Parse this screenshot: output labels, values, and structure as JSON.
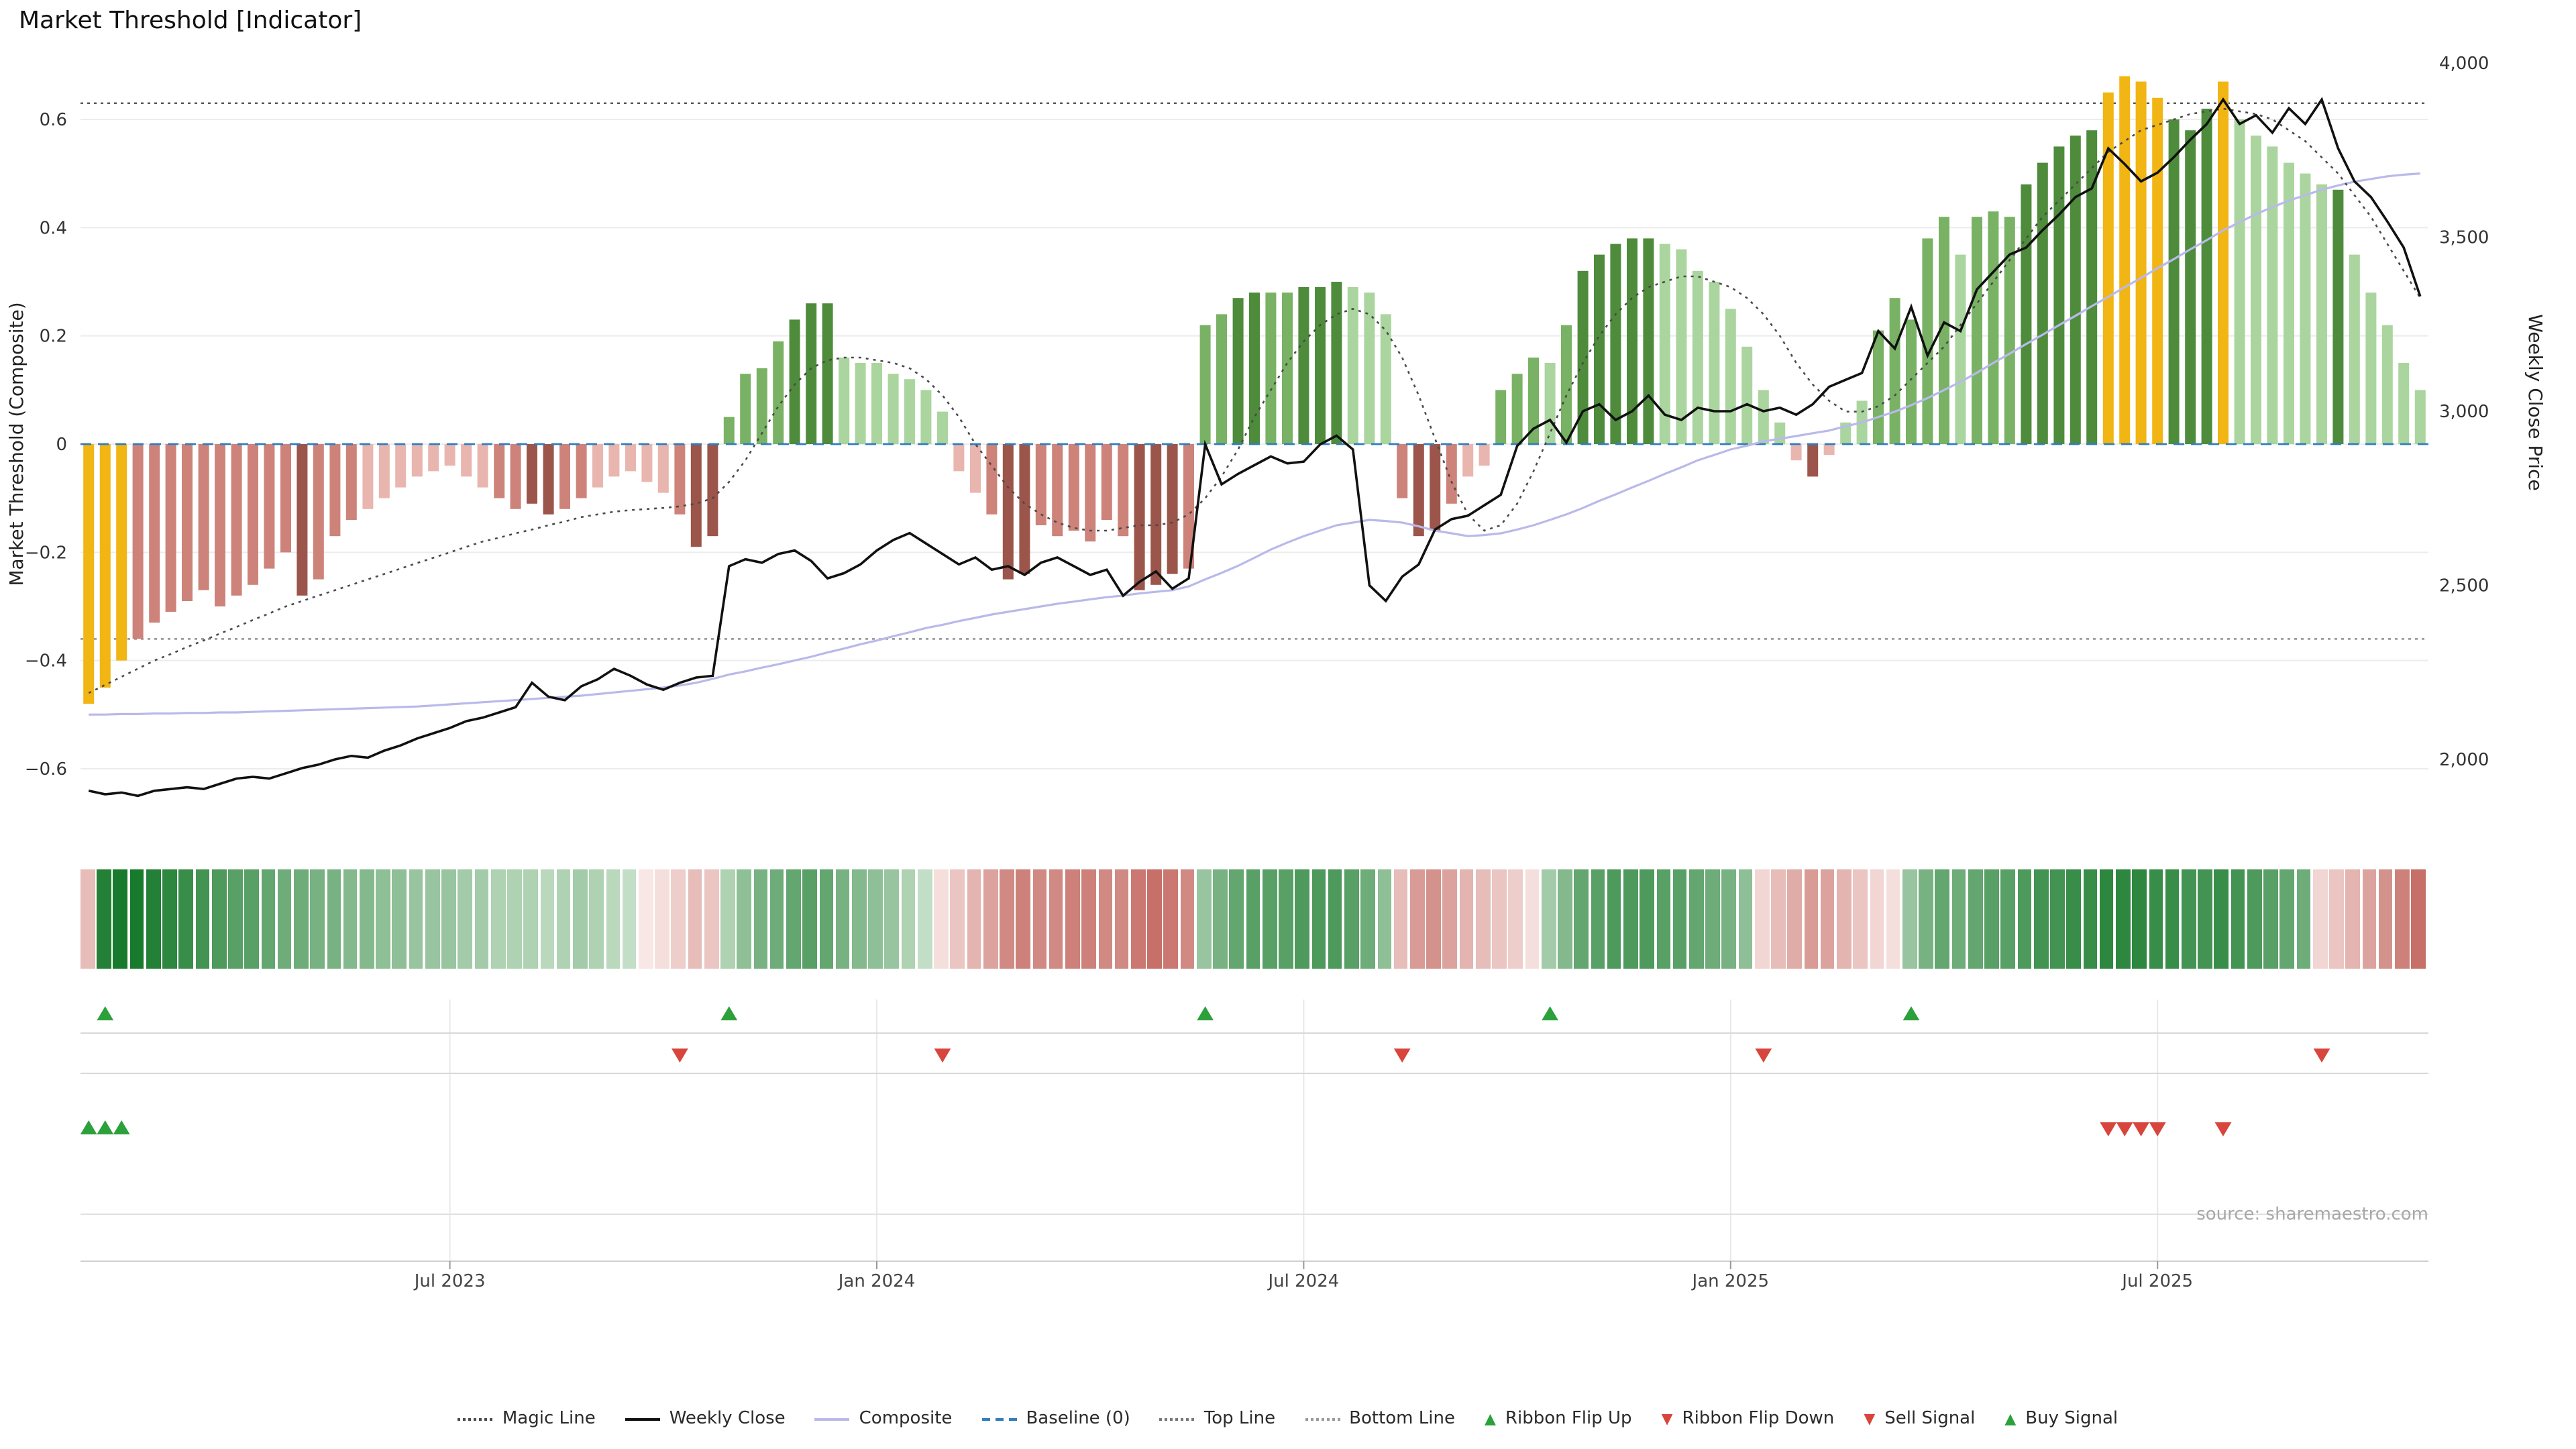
{
  "title": "Market Threshold [Indicator]",
  "source": "source: sharemaestro.com",
  "axes": {
    "left_label": "Market Threshold (Composite)",
    "right_label": "Weekly Close Price",
    "left_ticks": [
      {
        "v": 0.6,
        "label": "0.6"
      },
      {
        "v": 0.4,
        "label": "0.4"
      },
      {
        "v": 0.2,
        "label": "0.2"
      },
      {
        "v": 0,
        "label": "0"
      },
      {
        "v": -0.2,
        "label": "−0.2"
      },
      {
        "v": -0.4,
        "label": "−0.4"
      },
      {
        "v": -0.6,
        "label": "−0.6"
      }
    ],
    "right_ticks": [
      {
        "v": 4000,
        "label": "4,000"
      },
      {
        "v": 3500,
        "label": "3,500"
      },
      {
        "v": 3000,
        "label": "3,000"
      },
      {
        "v": 2500,
        "label": "2,500"
      },
      {
        "v": 2000,
        "label": "2,000"
      }
    ],
    "x_tick_labels": [
      "Jul 2023",
      "Jan 2024",
      "Jul 2024",
      "Jan 2025",
      "Jul 2025"
    ],
    "x_tick_weeks": [
      22,
      48,
      74,
      100,
      126
    ]
  },
  "colors": {
    "gold": "#f1b514",
    "g3": "#4e8c3c",
    "g2": "#79b264",
    "g1": "#abd59e",
    "r3": "#9c554b",
    "r2": "#cd837a",
    "r1": "#e8b6af",
    "magic": "#4a4a4a",
    "close": "#111111",
    "composite": "#b9b9ea",
    "baseline": "#2f7ebe",
    "top_line": "#555555",
    "bottom_line": "#888888",
    "signal_green": "#2ba03b",
    "signal_red": "#d8453c",
    "ribbon_green": "#187a2c",
    "ribbon_green_light": "#eef7ec",
    "ribbon_red": "#b4453c",
    "ribbon_red_light": "#fcf0ee"
  },
  "legend": [
    {
      "id": "magic-line",
      "label": "Magic Line",
      "type": "dotted",
      "color": "#4a4a4a"
    },
    {
      "id": "weekly-close",
      "label": "Weekly Close",
      "type": "solid",
      "color": "#111111"
    },
    {
      "id": "composite",
      "label": "Composite",
      "type": "solid",
      "color": "#b9b9ea"
    },
    {
      "id": "baseline",
      "label": "Baseline (0)",
      "type": "dashed",
      "color": "#2f7ebe"
    },
    {
      "id": "top-line",
      "label": "Top Line",
      "type": "dotted",
      "color": "#777777"
    },
    {
      "id": "bottom-line",
      "label": "Bottom Line",
      "type": "dotted",
      "color": "#999999"
    },
    {
      "id": "ribbon-flip-up",
      "label": "Ribbon Flip Up",
      "type": "tri-up",
      "color": "#2ba03b"
    },
    {
      "id": "ribbon-flip-down",
      "label": "Ribbon Flip Down",
      "type": "tri-down",
      "color": "#d8453c"
    },
    {
      "id": "sell-signal",
      "label": "Sell Signal",
      "type": "tri-down",
      "color": "#d8453c"
    },
    {
      "id": "buy-signal",
      "label": "Buy Signal",
      "type": "tri-up",
      "color": "#2ba03b"
    }
  ],
  "chart_data": {
    "type": "bar+line dual-axis weekly",
    "x_unit": "week",
    "weeks": 143,
    "left_ylim": [
      -0.75,
      0.7
    ],
    "right_ylim": [
      1750,
      4100
    ],
    "baseline": 0,
    "top_line": 0.63,
    "bottom_line": -0.36,
    "threshold_bars": [
      -0.48,
      -0.45,
      -0.4,
      -0.36,
      -0.33,
      -0.31,
      -0.29,
      -0.27,
      -0.3,
      -0.28,
      -0.26,
      -0.23,
      -0.2,
      -0.28,
      -0.25,
      -0.17,
      -0.14,
      -0.12,
      -0.1,
      -0.08,
      -0.06,
      -0.05,
      -0.04,
      -0.06,
      -0.08,
      -0.1,
      -0.12,
      -0.11,
      -0.13,
      -0.12,
      -0.1,
      -0.08,
      -0.06,
      -0.05,
      -0.07,
      -0.09,
      -0.13,
      -0.19,
      -0.17,
      0.05,
      0.13,
      0.14,
      0.19,
      0.23,
      0.26,
      0.26,
      0.16,
      0.15,
      0.15,
      0.13,
      0.12,
      0.1,
      0.06,
      -0.05,
      -0.09,
      -0.13,
      -0.25,
      -0.24,
      -0.15,
      -0.17,
      -0.16,
      -0.18,
      -0.14,
      -0.17,
      -0.27,
      -0.26,
      -0.24,
      -0.23,
      0.22,
      0.24,
      0.27,
      0.28,
      0.28,
      0.28,
      0.29,
      0.29,
      0.3,
      0.29,
      0.28,
      0.24,
      -0.1,
      -0.17,
      -0.16,
      -0.11,
      -0.06,
      -0.04,
      0.1,
      0.13,
      0.16,
      0.15,
      0.22,
      0.32,
      0.35,
      0.37,
      0.38,
      0.38,
      0.37,
      0.36,
      0.32,
      0.3,
      0.25,
      0.18,
      0.1,
      0.04,
      -0.03,
      -0.06,
      -0.02,
      0.04,
      0.08,
      0.21,
      0.27,
      0.23,
      0.38,
      0.42,
      0.35,
      0.42,
      0.43,
      0.42,
      0.48,
      0.52,
      0.55,
      0.57,
      0.58,
      0.65,
      0.68,
      0.67,
      0.64,
      0.6,
      0.58,
      0.62,
      0.67,
      0.6,
      0.57,
      0.55,
      0.52,
      0.5,
      0.48,
      0.47,
      0.35,
      0.28,
      0.22,
      0.15,
      0.1
    ],
    "bar_colors": [
      "gold",
      "gold",
      "gold",
      "r2",
      "r2",
      "r2",
      "r2",
      "r2",
      "r2",
      "r2",
      "r2",
      "r2",
      "r2",
      "r3",
      "r2",
      "r2",
      "r2",
      "r1",
      "r1",
      "r1",
      "r1",
      "r1",
      "r1",
      "r1",
      "r1",
      "r2",
      "r2",
      "r3",
      "r3",
      "r2",
      "r2",
      "r1",
      "r1",
      "r1",
      "r1",
      "r1",
      "r2",
      "r3",
      "r3",
      "g2",
      "g2",
      "g2",
      "g2",
      "g3",
      "g3",
      "g3",
      "g1",
      "g1",
      "g1",
      "g1",
      "g1",
      "g1",
      "g1",
      "r1",
      "r1",
      "r2",
      "r3",
      "r3",
      "r2",
      "r2",
      "r2",
      "r2",
      "r2",
      "r2",
      "r3",
      "r3",
      "r3",
      "r2",
      "g2",
      "g2",
      "g3",
      "g3",
      "g2",
      "g2",
      "g3",
      "g3",
      "g3",
      "g1",
      "g1",
      "g1",
      "r2",
      "r3",
      "r3",
      "r2",
      "r1",
      "r1",
      "g2",
      "g2",
      "g2",
      "g1",
      "g2",
      "g3",
      "g3",
      "g3",
      "g3",
      "g3",
      "g1",
      "g1",
      "g1",
      "g1",
      "g1",
      "g1",
      "g1",
      "g1",
      "r1",
      "r3",
      "r1",
      "g1",
      "g1",
      "g2",
      "g2",
      "g2",
      "g2",
      "g2",
      "g1",
      "g2",
      "g2",
      "g2",
      "g3",
      "g3",
      "g3",
      "g3",
      "g3",
      "gold",
      "gold",
      "gold",
      "gold",
      "g3",
      "g3",
      "g3",
      "gold",
      "g1",
      "g1",
      "g1",
      "g1",
      "g1",
      "g1",
      "g3",
      "g1",
      "g1",
      "g1",
      "g1",
      "g1"
    ],
    "weekly_close": [
      1910,
      1900,
      1905,
      1895,
      1910,
      1915,
      1920,
      1915,
      1930,
      1945,
      1950,
      1945,
      1960,
      1975,
      1985,
      2000,
      2010,
      2005,
      2025,
      2040,
      2060,
      2075,
      2090,
      2110,
      2120,
      2135,
      2150,
      2220,
      2180,
      2170,
      2210,
      2230,
      2260,
      2240,
      2215,
      2200,
      2220,
      2235,
      2240,
      2555,
      2575,
      2565,
      2590,
      2600,
      2570,
      2520,
      2535,
      2560,
      2600,
      2630,
      2650,
      2620,
      2590,
      2560,
      2580,
      2545,
      2555,
      2530,
      2565,
      2580,
      2555,
      2530,
      2545,
      2470,
      2510,
      2540,
      2490,
      2520,
      2905,
      2790,
      2820,
      2845,
      2870,
      2850,
      2855,
      2905,
      2930,
      2890,
      2500,
      2455,
      2525,
      2560,
      2660,
      2690,
      2700,
      2730,
      2760,
      2900,
      2950,
      2975,
      2910,
      3000,
      3020,
      2975,
      3000,
      3045,
      2990,
      2975,
      3010,
      3000,
      3000,
      3020,
      3000,
      3010,
      2990,
      3020,
      3070,
      3090,
      3110,
      3230,
      3180,
      3300,
      3160,
      3255,
      3230,
      3350,
      3400,
      3450,
      3470,
      3520,
      3565,
      3615,
      3640,
      3755,
      3710,
      3660,
      3685,
      3730,
      3780,
      3825,
      3895,
      3825,
      3850,
      3800,
      3870,
      3825,
      3895,
      3755,
      3660,
      3615,
      3545,
      3470,
      3330
    ],
    "magic_line": [
      -0.46,
      -0.445,
      -0.43,
      -0.415,
      -0.4,
      -0.388,
      -0.375,
      -0.363,
      -0.35,
      -0.338,
      -0.325,
      -0.313,
      -0.3,
      -0.29,
      -0.28,
      -0.27,
      -0.26,
      -0.25,
      -0.24,
      -0.23,
      -0.22,
      -0.21,
      -0.2,
      -0.19,
      -0.18,
      -0.173,
      -0.165,
      -0.158,
      -0.15,
      -0.143,
      -0.135,
      -0.13,
      -0.125,
      -0.122,
      -0.12,
      -0.118,
      -0.115,
      -0.11,
      -0.1,
      -0.07,
      -0.03,
      0.02,
      0.07,
      0.11,
      0.14,
      0.155,
      0.16,
      0.16,
      0.155,
      0.15,
      0.14,
      0.12,
      0.09,
      0.05,
      0.0,
      -0.04,
      -0.08,
      -0.11,
      -0.13,
      -0.145,
      -0.155,
      -0.16,
      -0.16,
      -0.155,
      -0.15,
      -0.15,
      -0.145,
      -0.13,
      -0.1,
      -0.06,
      -0.01,
      0.05,
      0.1,
      0.15,
      0.19,
      0.22,
      0.24,
      0.25,
      0.24,
      0.21,
      0.16,
      0.09,
      0.01,
      -0.07,
      -0.13,
      -0.16,
      -0.15,
      -0.11,
      -0.05,
      0.02,
      0.09,
      0.15,
      0.2,
      0.24,
      0.27,
      0.29,
      0.3,
      0.31,
      0.31,
      0.3,
      0.29,
      0.27,
      0.24,
      0.2,
      0.15,
      0.11,
      0.08,
      0.06,
      0.06,
      0.07,
      0.09,
      0.12,
      0.15,
      0.18,
      0.22,
      0.26,
      0.3,
      0.34,
      0.38,
      0.42,
      0.45,
      0.48,
      0.51,
      0.54,
      0.56,
      0.58,
      0.59,
      0.6,
      0.61,
      0.615,
      0.62,
      0.615,
      0.61,
      0.6,
      0.58,
      0.56,
      0.53,
      0.5,
      0.46,
      0.42,
      0.37,
      0.32,
      0.27
    ],
    "composite": [
      -0.5,
      -0.5,
      -0.499,
      -0.499,
      -0.498,
      -0.498,
      -0.497,
      -0.497,
      -0.496,
      -0.496,
      -0.495,
      -0.494,
      -0.493,
      -0.492,
      -0.491,
      -0.49,
      -0.489,
      -0.488,
      -0.487,
      -0.486,
      -0.485,
      -0.483,
      -0.481,
      -0.479,
      -0.477,
      -0.475,
      -0.473,
      -0.471,
      -0.469,
      -0.467,
      -0.465,
      -0.462,
      -0.459,
      -0.456,
      -0.453,
      -0.45,
      -0.446,
      -0.441,
      -0.434,
      -0.426,
      -0.42,
      -0.413,
      -0.407,
      -0.4,
      -0.393,
      -0.385,
      -0.378,
      -0.37,
      -0.363,
      -0.355,
      -0.348,
      -0.34,
      -0.334,
      -0.327,
      -0.321,
      -0.315,
      -0.31,
      -0.305,
      -0.3,
      -0.295,
      -0.291,
      -0.287,
      -0.283,
      -0.28,
      -0.276,
      -0.273,
      -0.27,
      -0.263,
      -0.25,
      -0.238,
      -0.225,
      -0.21,
      -0.195,
      -0.182,
      -0.17,
      -0.16,
      -0.15,
      -0.145,
      -0.14,
      -0.142,
      -0.145,
      -0.152,
      -0.16,
      -0.165,
      -0.17,
      -0.168,
      -0.165,
      -0.158,
      -0.15,
      -0.14,
      -0.13,
      -0.118,
      -0.105,
      -0.093,
      -0.08,
      -0.068,
      -0.055,
      -0.043,
      -0.03,
      -0.02,
      -0.01,
      -0.003,
      0.005,
      0.01,
      0.015,
      0.02,
      0.025,
      0.033,
      0.04,
      0.05,
      0.06,
      0.072,
      0.085,
      0.1,
      0.115,
      0.132,
      0.15,
      0.167,
      0.185,
      0.202,
      0.22,
      0.237,
      0.255,
      0.272,
      0.29,
      0.307,
      0.325,
      0.342,
      0.36,
      0.377,
      0.395,
      0.41,
      0.425,
      0.438,
      0.45,
      0.46,
      0.47,
      0.478,
      0.485,
      0.49,
      0.495,
      0.498,
      0.5
    ],
    "ribbon": [
      -0.3,
      0.95,
      1.0,
      1.0,
      0.95,
      0.9,
      0.85,
      0.8,
      0.75,
      0.7,
      0.7,
      0.65,
      0.6,
      0.6,
      0.55,
      0.55,
      0.5,
      0.5,
      0.45,
      0.45,
      0.4,
      0.4,
      0.4,
      0.35,
      0.35,
      0.3,
      0.3,
      0.3,
      0.25,
      0.3,
      0.35,
      0.3,
      0.25,
      0.2,
      -0.05,
      -0.1,
      -0.2,
      -0.3,
      -0.25,
      0.3,
      0.45,
      0.55,
      0.6,
      0.65,
      0.7,
      0.65,
      0.55,
      0.5,
      0.45,
      0.4,
      0.3,
      0.2,
      -0.1,
      -0.25,
      -0.35,
      -0.45,
      -0.6,
      -0.65,
      -0.6,
      -0.6,
      -0.65,
      -0.65,
      -0.6,
      -0.6,
      -0.7,
      -0.75,
      -0.7,
      -0.6,
      0.4,
      0.55,
      0.65,
      0.7,
      0.7,
      0.7,
      0.75,
      0.75,
      0.75,
      0.7,
      0.6,
      0.45,
      -0.3,
      -0.5,
      -0.55,
      -0.45,
      -0.35,
      -0.3,
      -0.25,
      -0.2,
      -0.1,
      0.35,
      0.5,
      0.65,
      0.7,
      0.75,
      0.75,
      0.75,
      0.7,
      0.7,
      0.65,
      0.6,
      0.55,
      0.45,
      -0.15,
      -0.3,
      -0.4,
      -0.5,
      -0.45,
      -0.35,
      -0.25,
      -0.15,
      -0.1,
      0.4,
      0.55,
      0.65,
      0.6,
      0.65,
      0.7,
      0.7,
      0.75,
      0.8,
      0.8,
      0.85,
      0.85,
      0.9,
      0.9,
      0.9,
      0.85,
      0.85,
      0.8,
      0.8,
      0.85,
      0.8,
      0.75,
      0.7,
      0.65,
      0.6,
      -0.15,
      -0.25,
      -0.35,
      -0.45,
      -0.55,
      -0.65,
      -0.75
    ],
    "signals": {
      "ribbon_flip_up_weeks": [
        1,
        39,
        68,
        89,
        111
      ],
      "ribbon_flip_down_weeks": [
        36,
        52,
        80,
        102,
        136
      ],
      "buy_signal_weeks": [
        0,
        1,
        2
      ],
      "sell_signal_weeks": [
        123,
        124,
        125,
        126,
        130
      ]
    }
  }
}
